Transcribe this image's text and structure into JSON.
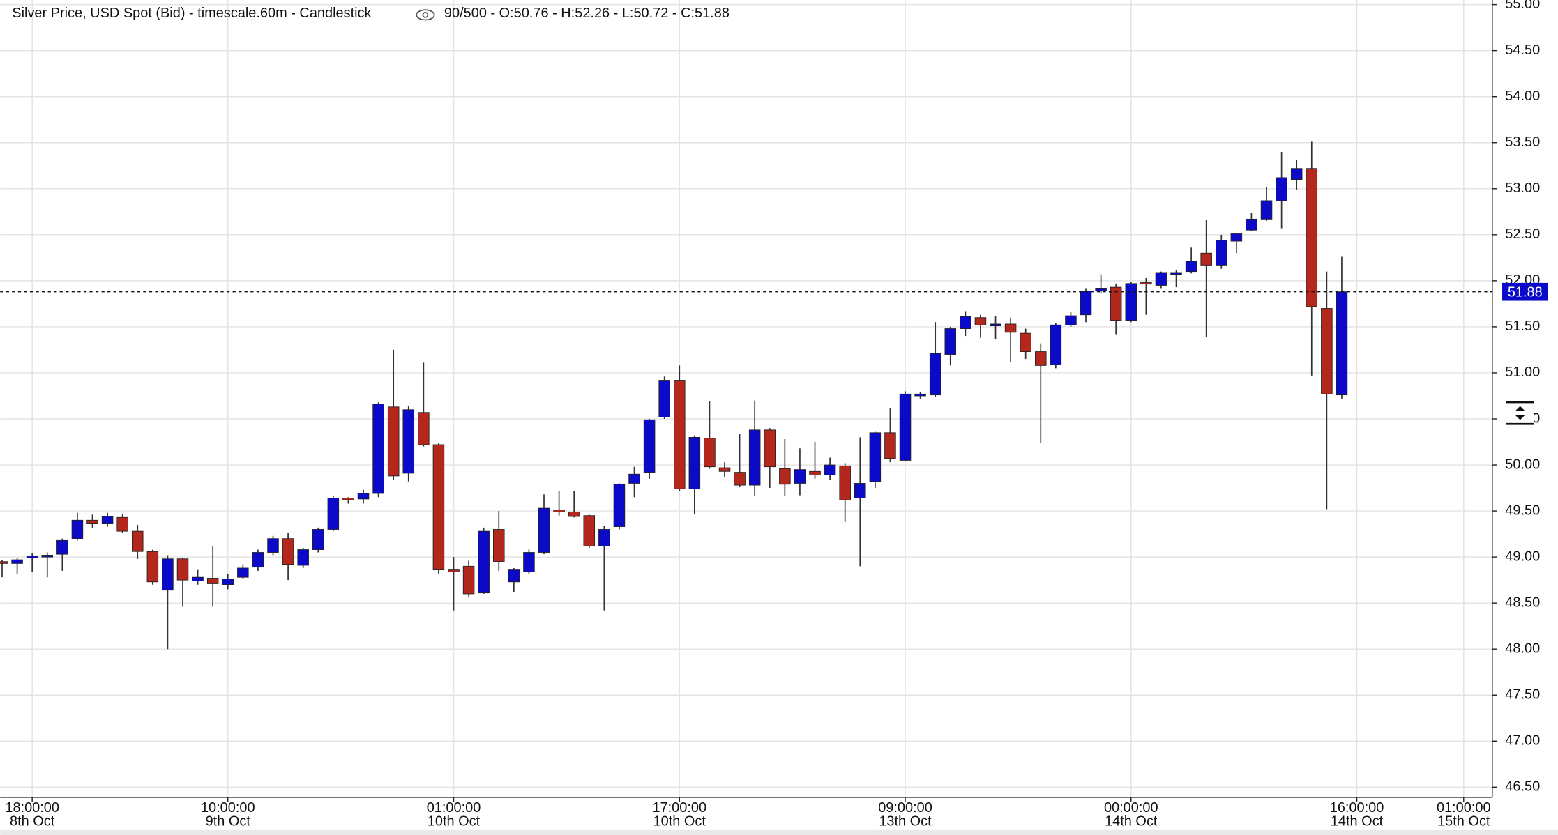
{
  "chart_data": {
    "type": "candlestick",
    "title": "Silver Price, USD Spot (Bid) - timescale.60m - Candlestick",
    "info": "90/500 - O:50.76 - H:52.26 - L:50.72 - C:51.88",
    "up_color": "#0a0ac8",
    "down_color": "#b3271d",
    "wick_color": "#333333",
    "grid": true,
    "last_price": 51.88,
    "xlim": [
      -0.13,
      99
    ],
    "ylim": [
      46.39,
      55.05
    ],
    "xticks": [
      {
        "value": 2,
        "label": [
          "18:00:00",
          "8th Oct"
        ]
      },
      {
        "value": 15,
        "label": [
          "10:00:00",
          "9th Oct"
        ]
      },
      {
        "value": 30,
        "label": [
          "01:00:00",
          "10th Oct"
        ]
      },
      {
        "value": 45,
        "label": [
          "17:00:00",
          "10th Oct"
        ]
      },
      {
        "value": 60,
        "label": [
          "09:00:00",
          "13th Oct"
        ]
      },
      {
        "value": 75,
        "label": [
          "00:00:00",
          "14th Oct"
        ]
      },
      {
        "value": 90,
        "label": [
          "16:00:00",
          "14th Oct"
        ]
      },
      {
        "value": 97.1,
        "label": [
          "01:00:00",
          "15th Oct"
        ]
      }
    ],
    "yticks": [
      {
        "value": 46.5,
        "label": "46.50"
      },
      {
        "value": 47,
        "label": "47.00"
      },
      {
        "value": 47.5,
        "label": "47.50"
      },
      {
        "value": 48,
        "label": "48.00"
      },
      {
        "value": 48.5,
        "label": "48.50"
      },
      {
        "value": 49,
        "label": "49.00"
      },
      {
        "value": 49.5,
        "label": "49.50"
      },
      {
        "value": 50,
        "label": "50.00"
      },
      {
        "value": 50.5,
        "label": "50.50"
      },
      {
        "value": 51,
        "label": "51.00"
      },
      {
        "value": 51.5,
        "label": "51.50"
      },
      {
        "value": 52,
        "label": "52.00"
      },
      {
        "value": 52.5,
        "label": "52.50"
      },
      {
        "value": 53,
        "label": "53.00"
      },
      {
        "value": 53.5,
        "label": "53.50"
      },
      {
        "value": 54,
        "label": "54.00"
      },
      {
        "value": 54.5,
        "label": "54.50"
      },
      {
        "value": 55,
        "label": "55.00"
      }
    ],
    "open": [
      48.95,
      48.93,
      48.99,
      49.0,
      49.03,
      49.2,
      49.4,
      49.36,
      49.43,
      49.28,
      49.06,
      48.64,
      48.98,
      48.74,
      48.77,
      48.7,
      48.78,
      48.89,
      49.05,
      49.2,
      48.91,
      49.08,
      49.3,
      49.64,
      49.63,
      49.69,
      50.63,
      49.91,
      50.57,
      50.22,
      48.86,
      48.9,
      48.61,
      49.3,
      48.73,
      48.84,
      49.05,
      49.51,
      49.49,
      49.45,
      49.12,
      49.33,
      49.8,
      49.92,
      50.52,
      50.92,
      49.74,
      50.29,
      49.97,
      49.92,
      49.78,
      50.38,
      49.96,
      49.8,
      49.93,
      49.89,
      49.99,
      49.64,
      49.82,
      50.35,
      50.05,
      50.75,
      50.76,
      51.2,
      51.48,
      51.6,
      51.51,
      51.53,
      51.43,
      51.23,
      51.09,
      51.52,
      51.63,
      51.89,
      51.93,
      51.57,
      51.98,
      51.95,
      52.07,
      52.1,
      52.3,
      52.17,
      52.43,
      52.55,
      52.67,
      52.87,
      53.1,
      53.22,
      51.7,
      50.76
    ],
    "high": [
      48.97,
      48.99,
      49.04,
      49.05,
      49.2,
      49.48,
      49.46,
      49.48,
      49.47,
      49.35,
      49.08,
      49.02,
      48.99,
      48.86,
      49.12,
      48.82,
      48.92,
      49.08,
      49.23,
      49.26,
      49.1,
      49.32,
      49.66,
      49.65,
      49.73,
      50.68,
      51.25,
      50.64,
      51.11,
      50.24,
      49.0,
      48.96,
      49.32,
      49.5,
      48.88,
      49.08,
      49.68,
      49.72,
      49.72,
      49.46,
      49.34,
      49.8,
      49.98,
      50.5,
      50.96,
      51.08,
      50.32,
      50.69,
      50.03,
      50.34,
      50.7,
      50.4,
      50.28,
      50.18,
      50.25,
      50.08,
      50.02,
      50.3,
      50.36,
      50.62,
      50.8,
      50.79,
      51.55,
      51.5,
      51.67,
      51.63,
      51.62,
      51.6,
      51.48,
      51.32,
      51.54,
      51.66,
      51.92,
      52.07,
      51.97,
      51.99,
      52.03,
      52.1,
      52.12,
      52.36,
      52.66,
      52.5,
      52.52,
      52.74,
      53.02,
      53.4,
      53.31,
      53.51,
      52.1,
      52.26
    ],
    "low": [
      48.78,
      48.82,
      48.84,
      48.78,
      48.85,
      49.18,
      49.32,
      49.33,
      49.26,
      48.98,
      48.7,
      48.0,
      48.46,
      48.7,
      48.46,
      48.65,
      48.76,
      48.85,
      49.02,
      48.75,
      48.88,
      49.05,
      49.28,
      49.58,
      49.58,
      49.65,
      49.84,
      49.82,
      50.2,
      48.82,
      48.42,
      48.57,
      48.6,
      48.85,
      48.62,
      48.82,
      49.03,
      49.45,
      49.43,
      49.1,
      48.42,
      49.3,
      49.65,
      49.85,
      50.5,
      49.72,
      49.47,
      49.96,
      49.87,
      49.76,
      49.66,
      49.75,
      49.66,
      49.67,
      49.85,
      49.84,
      49.38,
      48.9,
      49.75,
      50.03,
      50.04,
      50.72,
      50.74,
      51.08,
      51.4,
      51.38,
      51.37,
      51.12,
      51.15,
      50.24,
      51.05,
      51.5,
      51.55,
      51.86,
      51.42,
      51.55,
      51.63,
      51.92,
      51.93,
      52.08,
      51.39,
      52.13,
      52.3,
      52.54,
      52.65,
      52.57,
      52.99,
      50.97,
      49.52,
      50.72
    ],
    "close": [
      48.93,
      48.97,
      49.01,
      49.02,
      49.18,
      49.4,
      49.36,
      49.44,
      49.28,
      49.06,
      48.73,
      48.98,
      48.75,
      48.78,
      48.71,
      48.76,
      48.88,
      49.05,
      49.2,
      48.92,
      49.08,
      49.3,
      49.64,
      49.62,
      49.69,
      50.66,
      49.88,
      50.6,
      50.22,
      48.86,
      48.84,
      48.6,
      49.28,
      48.95,
      48.86,
      49.05,
      49.53,
      49.49,
      49.44,
      49.12,
      49.3,
      49.79,
      49.9,
      50.49,
      50.92,
      49.74,
      50.3,
      49.98,
      49.93,
      49.78,
      50.38,
      49.98,
      49.79,
      49.95,
      49.89,
      50.0,
      49.62,
      49.8,
      50.35,
      50.07,
      50.77,
      50.77,
      51.21,
      51.48,
      51.61,
      51.52,
      51.53,
      51.44,
      51.23,
      51.08,
      51.52,
      51.62,
      51.89,
      51.92,
      51.57,
      51.97,
      51.97,
      52.09,
      52.09,
      52.21,
      52.17,
      52.44,
      52.51,
      52.67,
      52.87,
      53.12,
      53.22,
      51.72,
      50.77,
      51.88
    ]
  }
}
